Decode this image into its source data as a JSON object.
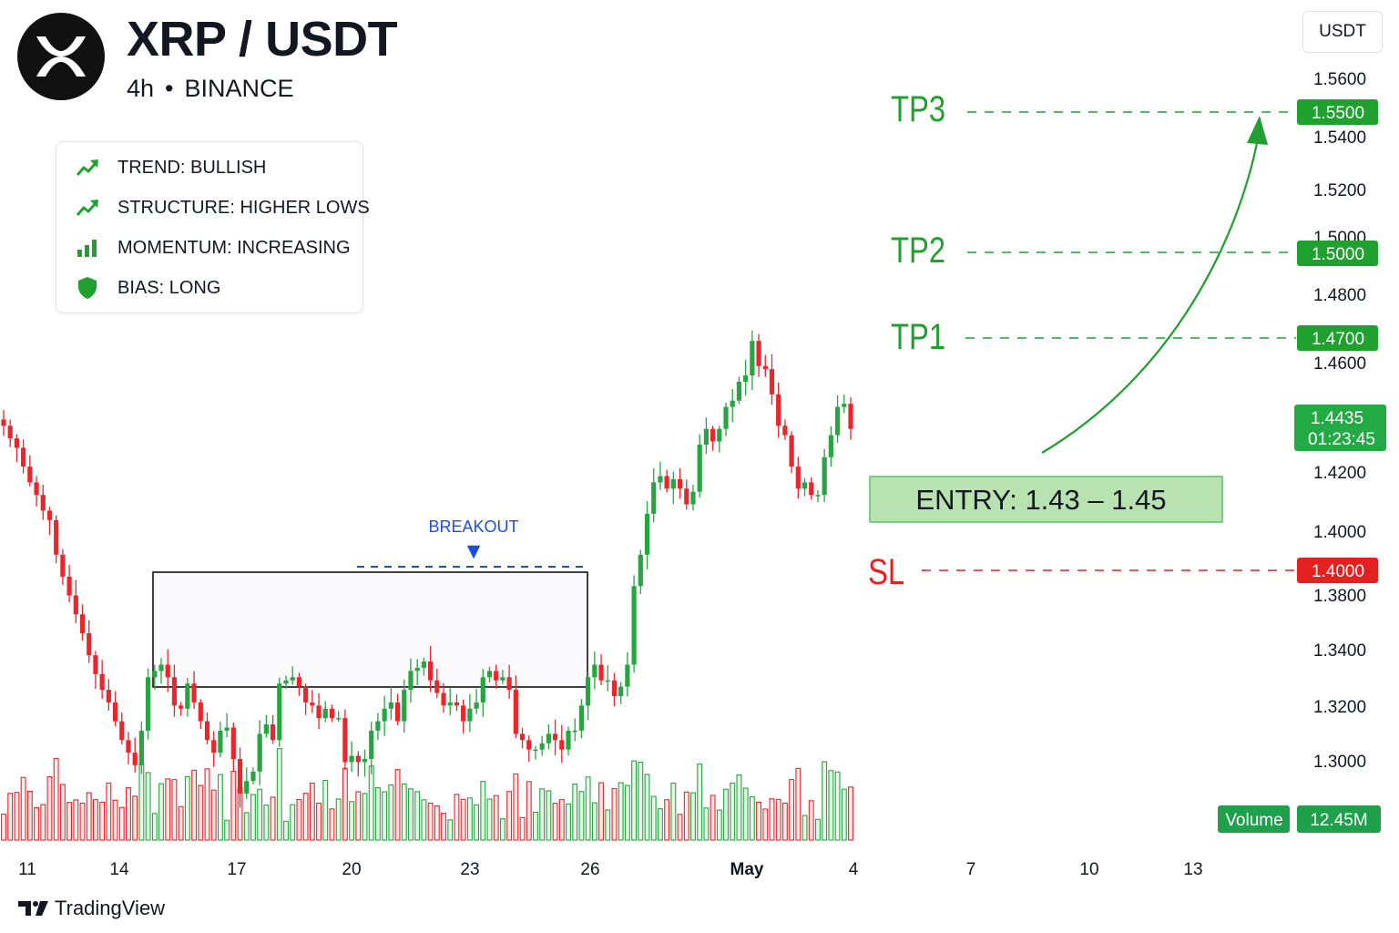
{
  "header": {
    "title": "XRP / USDT",
    "timeframe": "4h",
    "separator": "•",
    "exchange": "BINANCE",
    "logo_icon": "xrp-logo-icon"
  },
  "info_box": {
    "items": [
      {
        "icon": "trending-up-icon",
        "label": "TREND: BULLISH"
      },
      {
        "icon": "trending-up-icon",
        "label": "STRUCTURE: HIGHER LOWS"
      },
      {
        "icon": "bar-chart-icon",
        "label": "MOMENTUM: INCREASING"
      },
      {
        "icon": "shield-icon",
        "label": "BIAS: LONG"
      }
    ]
  },
  "currency_button": "USDT",
  "brand": "TradingView",
  "colors": {
    "up": "#26a541",
    "down": "#e8262b",
    "target": "#1fa02f",
    "stop": "#e5201f",
    "breakout": "#1a4fe0",
    "entry_fill": "#b8e3b1",
    "entry_border": "#5cc06a"
  },
  "chart_data": {
    "type": "candlestick",
    "symbol": "XRP / USDT",
    "interval": "4h",
    "x_labels": [
      "11",
      "14",
      "17",
      "20",
      "23",
      "26",
      "May",
      "4",
      "7",
      "10",
      "13"
    ],
    "y_axis_labels": [
      "1.5600",
      "1.5400",
      "1.5200",
      "1.5000",
      "1.4800",
      "1.4600",
      "1.4200",
      "1.4000",
      "1.3800",
      "1.3400",
      "1.3200",
      "1.3000"
    ],
    "levels": [
      {
        "name": "TP3",
        "price": "1.5500"
      },
      {
        "name": "TP2",
        "price": "1.5000"
      },
      {
        "name": "TP1",
        "price": "1.4700"
      },
      {
        "name": "SL",
        "price": "1.4000"
      }
    ],
    "entry": {
      "label": "ENTRY: 1.43 – 1.45"
    },
    "current_price": {
      "price": "1.4435",
      "countdown": "01:23:45"
    },
    "breakout": {
      "label": "BREAKOUT",
      "marker": "▼"
    },
    "volume": {
      "label": "Volume",
      "value": "12.45M"
    },
    "approx_closes": [
      1.446,
      1.442,
      1.439,
      1.433,
      1.428,
      1.424,
      1.419,
      1.416,
      1.405,
      1.398,
      1.392,
      1.386,
      1.38,
      1.373,
      1.367,
      1.362,
      1.358,
      1.352,
      1.346,
      1.342,
      1.338,
      1.349,
      1.366,
      1.368,
      1.37,
      1.366,
      1.357,
      1.356,
      1.364,
      1.358,
      1.352,
      1.346,
      1.342,
      1.349,
      1.35,
      1.34,
      1.329,
      1.333,
      1.336,
      1.348,
      1.351,
      1.346,
      1.364,
      1.365,
      1.366,
      1.363,
      1.358,
      1.357,
      1.353,
      1.356,
      1.353,
      1.353,
      1.339,
      1.341,
      1.339,
      1.34,
      1.349,
      1.352,
      1.356,
      1.358,
      1.352,
      1.362,
      1.368,
      1.369,
      1.371,
      1.365,
      1.361,
      1.357,
      1.358,
      1.357,
      1.352,
      1.356,
      1.358,
      1.366,
      1.368,
      1.365,
      1.366,
      1.362,
      1.348,
      1.346,
      1.343,
      1.343,
      1.345,
      1.348,
      1.346,
      1.343,
      1.349,
      1.349,
      1.357,
      1.366,
      1.37,
      1.365,
      1.365,
      1.36,
      1.363,
      1.37,
      1.395,
      1.405,
      1.418,
      1.428,
      1.43,
      1.426,
      1.429,
      1.426,
      1.421,
      1.425,
      1.44,
      1.445,
      1.441,
      1.445,
      1.452,
      1.454,
      1.46,
      1.462,
      1.473,
      1.465,
      1.464,
      1.456,
      1.446,
      1.443,
      1.433,
      1.426,
      1.428,
      1.424,
      1.424,
      1.436,
      1.443,
      1.452,
      1.453,
      1.445
    ]
  }
}
